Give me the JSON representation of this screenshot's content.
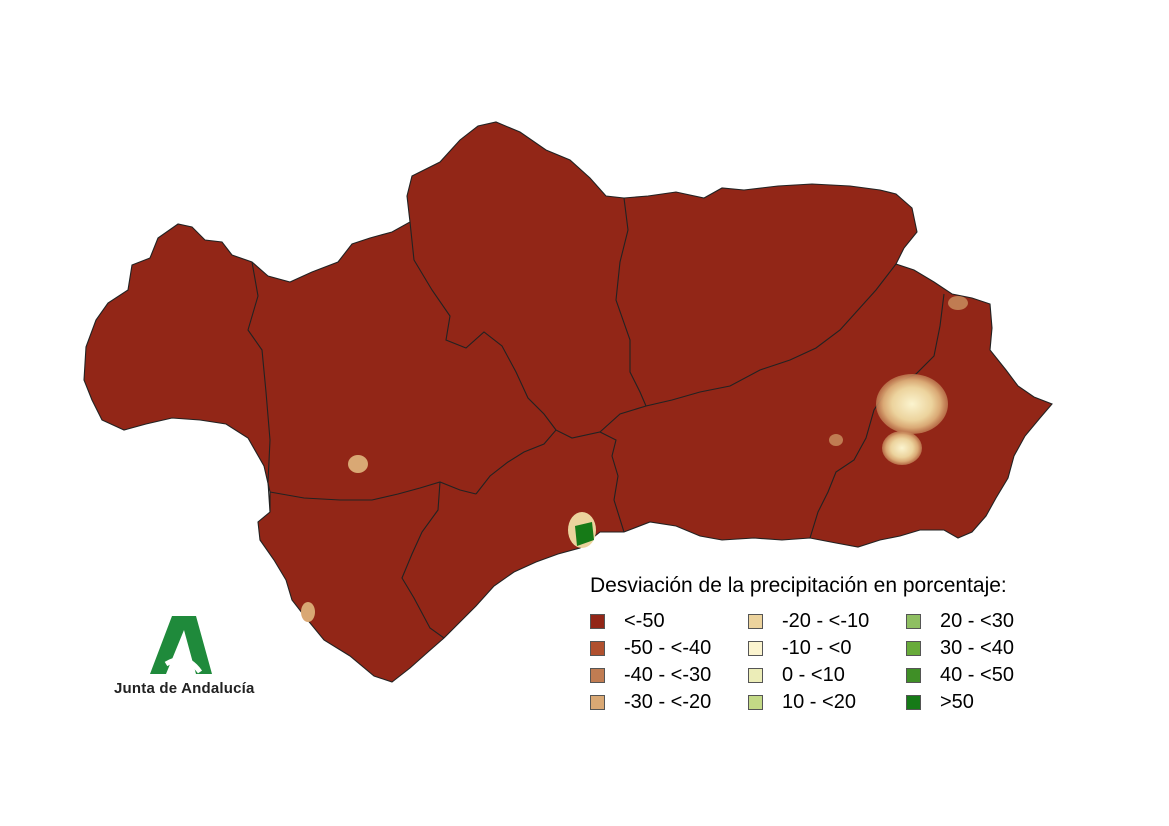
{
  "map": {
    "region": "Andalucía",
    "provinces": [
      "Huelva",
      "Sevilla",
      "Cádiz",
      "Córdoba",
      "Málaga",
      "Jaén",
      "Granada",
      "Almería"
    ],
    "base_color": "#922617",
    "border_color": "#222222"
  },
  "legend": {
    "title": "Desviación de la precipitación en porcentaje:",
    "items": [
      {
        "label": "<-50",
        "color": "#922617"
      },
      {
        "label": "-50 - <-40",
        "color": "#b0502e"
      },
      {
        "label": "-40 - <-30",
        "color": "#c07c52"
      },
      {
        "label": "-30 - <-20",
        "color": "#d9a874"
      },
      {
        "label": "-20 - <-10",
        "color": "#ecd39d"
      },
      {
        "label": "-10 - <0",
        "color": "#fbf4cf"
      },
      {
        "label": "0 - <10",
        "color": "#ecedb8"
      },
      {
        "label": "10 - <20",
        "color": "#c3d986"
      },
      {
        "label": "20 - <30",
        "color": "#8fbf62"
      },
      {
        "label": "30 - <40",
        "color": "#68ab3a"
      },
      {
        "label": "40 - <50",
        "color": "#3f8f26"
      },
      {
        "label": ">50",
        "color": "#167a17"
      }
    ]
  },
  "branding": {
    "logo_text": "Junta de Andalucía",
    "logo_color": "#1f8a3b"
  }
}
